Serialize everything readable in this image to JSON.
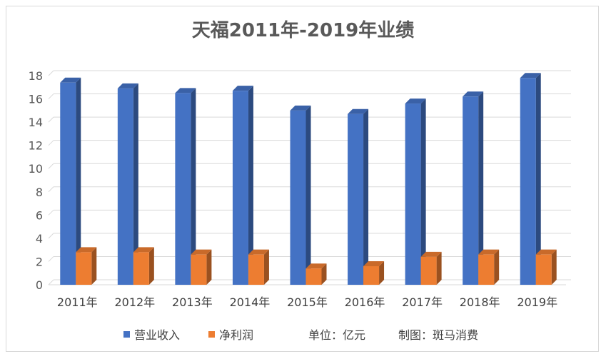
{
  "chart_data": {
    "type": "bar",
    "title": "天福2011年-2019年业绩",
    "categories": [
      "2011年",
      "2012年",
      "2013年",
      "2014年",
      "2015年",
      "2016年",
      "2017年",
      "2018年",
      "2019年"
    ],
    "series": [
      {
        "name": "营业收入",
        "color": "#4472c4",
        "values": [
          17.4,
          16.9,
          16.5,
          16.7,
          15.0,
          14.7,
          15.6,
          16.2,
          17.8
        ]
      },
      {
        "name": "净利润",
        "color": "#ed7d31",
        "values": [
          2.8,
          2.8,
          2.6,
          2.6,
          1.4,
          1.6,
          2.4,
          2.6,
          2.6
        ]
      }
    ],
    "ylim": [
      0,
      18
    ],
    "yticks": [
      0,
      2,
      4,
      6,
      8,
      10,
      12,
      14,
      16,
      18
    ],
    "grid": true,
    "legend": "bottom"
  },
  "notes": {
    "unit": "单位：亿元",
    "credit": "制图：斑马消费"
  }
}
